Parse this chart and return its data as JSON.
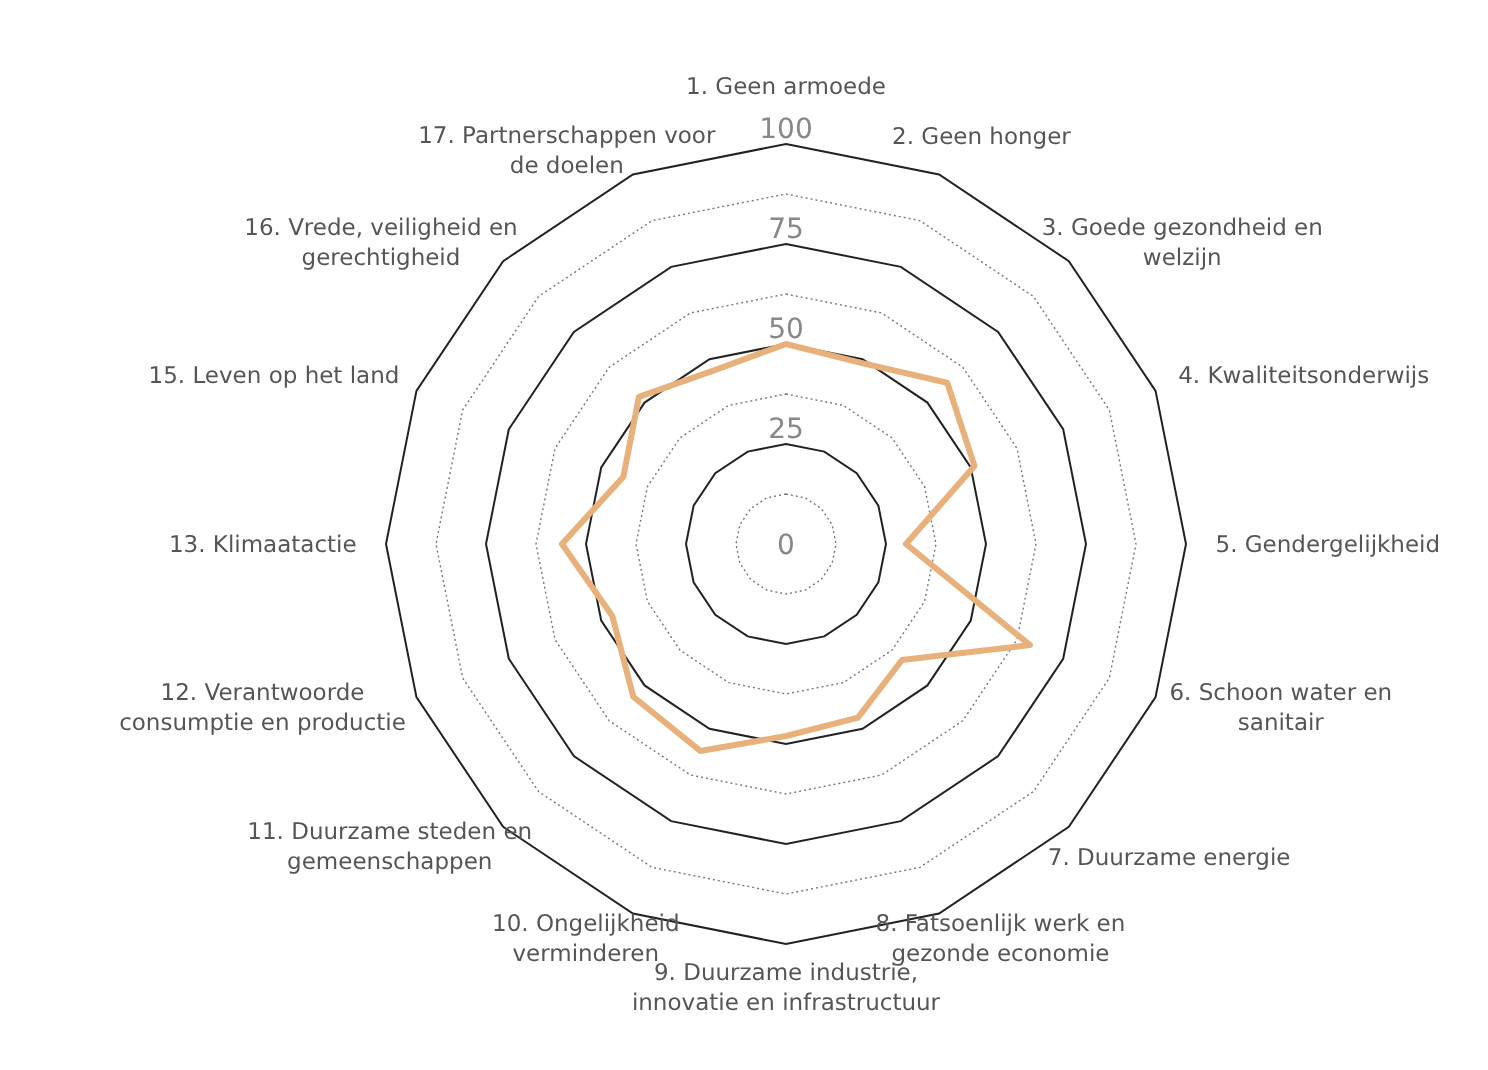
{
  "chart_data": {
    "type": "radar",
    "categories": [
      "1. Geen armoede",
      "2. Geen honger",
      "3. Goede gezondheid en welzijn",
      "4. Kwaliteitsonderwijs",
      "5. Gendergelijkheid",
      "6. Schoon water en sanitair",
      "7. Duurzame energie",
      "8. Fatsoenlijk werk en gezonde economie",
      "9. Duurzame industrie, innovatie en infrastructuur",
      "10. Ongelijkheid verminderen",
      "11. Duurzame steden en gemeenschappen",
      "12. Verantwoorde consumptie en productie",
      "13. Klimaatactie",
      "15. Leven op het land",
      "16. Vrede, veiligheid en gerechtigheid",
      "17. Partnerschappen voor de doelen"
    ],
    "series": [
      {
        "color": "#e8b07a",
        "values": [
          50,
          49,
          57,
          51,
          30,
          66,
          41,
          47,
          48,
          56,
          54,
          47,
          56,
          44,
          52,
          47
        ]
      }
    ],
    "ylim": [
      0,
      100
    ],
    "yticks": [
      0,
      25,
      50,
      75,
      100
    ],
    "grid": true,
    "marker": "none"
  }
}
